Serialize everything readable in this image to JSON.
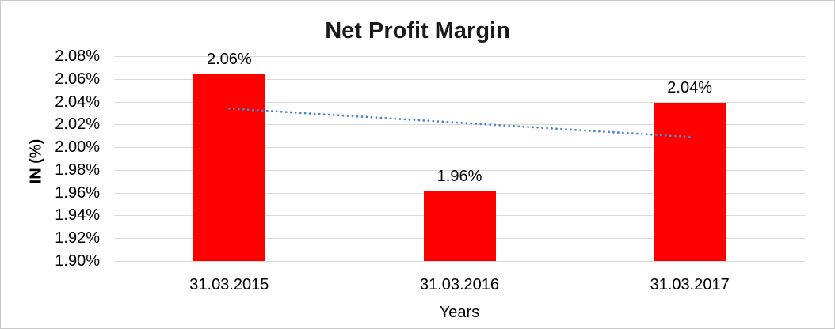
{
  "chart": {
    "background_color": "#ffffff",
    "border_color": "#c9c9c9",
    "gridline_color": "#d9d9d9",
    "bar_color": "#ff0000",
    "trendline_color": "#4a86c8",
    "text_color": "#000000",
    "title_color": "#1a1a1a"
  },
  "chart_data": {
    "type": "bar",
    "title": "Net Profit Margin",
    "xlabel": "Years",
    "ylabel": "IN (%)",
    "categories": [
      "31.03.2015",
      "31.03.2016",
      "31.03.2017"
    ],
    "values": [
      2.06,
      1.96,
      2.04
    ],
    "precise_values": [
      2.064,
      1.961,
      2.039
    ],
    "data_labels": [
      "2.06%",
      "1.96%",
      "2.04%"
    ],
    "unit": "%",
    "ylim": [
      1.9,
      2.08
    ],
    "ytick_step": 0.02,
    "ytick_labels": [
      "2.08%",
      "2.06%",
      "2.04%",
      "2.02%",
      "2.00%",
      "1.98%",
      "1.96%",
      "1.94%",
      "1.92%",
      "1.90%"
    ],
    "grid": true,
    "legend": false,
    "trendline": {
      "type": "linear",
      "style": "dotted",
      "color": "#4a86c8",
      "start_value": 2.034,
      "end_value": 2.009
    }
  }
}
